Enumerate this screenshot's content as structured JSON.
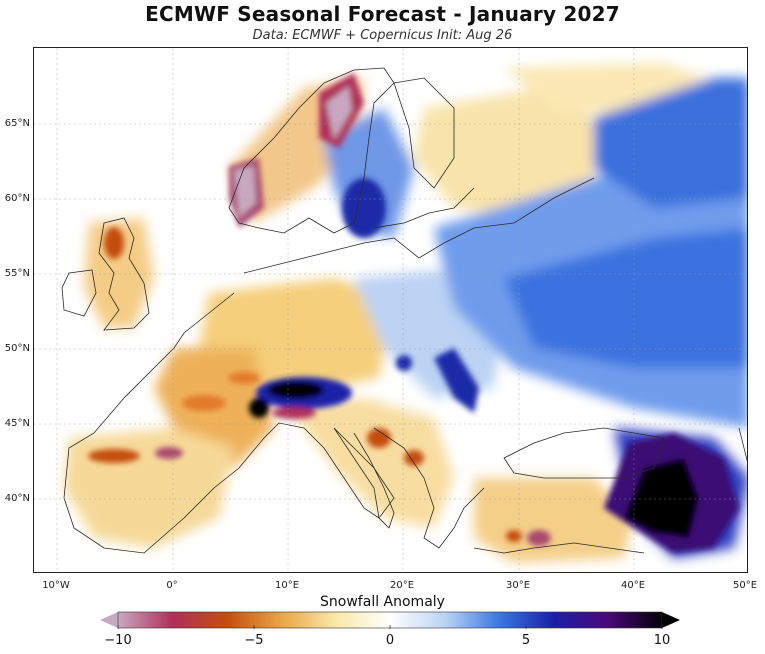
{
  "title": "ECMWF Seasonal Forecast - January 2027",
  "subtitle": "Data: ECMWF + Copernicus   Init: Aug 26",
  "map": {
    "region": "Europe",
    "projection": "equirectangular",
    "lon_range": [
      -12,
      50
    ],
    "lat_range": [
      35,
      70
    ],
    "lat_ticks": [
      "65°N",
      "60°N",
      "55°N",
      "50°N",
      "45°N",
      "40°N"
    ],
    "lon_ticks": [
      "10°W",
      "0°",
      "10°E",
      "20°E",
      "30°E",
      "40°E",
      "50°E"
    ]
  },
  "colorbar": {
    "label": "Snowfall Anomaly",
    "min": -10,
    "max": 10,
    "ticks": [
      "−10",
      "−5",
      "0",
      "5",
      "10"
    ],
    "colors": [
      "#c8a8c0",
      "#b0305a",
      "#c44d0e",
      "#e8a547",
      "#fbe8a8",
      "#ffffff",
      "#bcd3f4",
      "#3a78e0",
      "#1a20a8",
      "#4b087a",
      "#050005"
    ]
  }
}
